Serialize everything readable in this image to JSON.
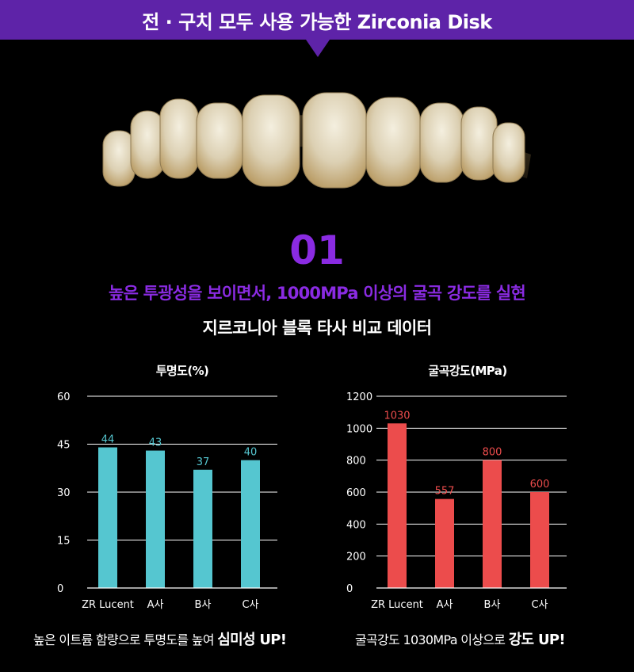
{
  "banner": {
    "text": "전 · 구치 모두 사용 가능한 Zirconia Disk"
  },
  "section": {
    "number": "01",
    "headline": "높은 투광성을 보이면서, 1000MPa 이상의 굴곡 강도를 실현",
    "subtitle": "지르코니아 블록 타사 비교 데이터"
  },
  "colors": {
    "accent": "#8a2be2",
    "banner": "#5e23a8",
    "translucency_bar": "#55c6d0",
    "strength_bar": "#ec4c4c"
  },
  "chart_data": [
    {
      "type": "bar",
      "title": "투명도(%)",
      "categories": [
        "ZR Lucent",
        "A사",
        "B사",
        "C사"
      ],
      "values": [
        44,
        43,
        37,
        40
      ],
      "yticks": [
        0,
        15,
        30,
        45,
        60
      ],
      "ylim": [
        0,
        60
      ],
      "grid": true
    },
    {
      "type": "bar",
      "title": "굴곡강도(MPa)",
      "categories": [
        "ZR Lucent",
        "A사",
        "B사",
        "C사"
      ],
      "values": [
        1030,
        557,
        800,
        600
      ],
      "yticks": [
        0,
        200,
        400,
        600,
        800,
        1000,
        1200
      ],
      "ylim": [
        0,
        1200
      ],
      "grid": true
    }
  ],
  "captions": {
    "left_prefix": "높은 이트륨 함량으로 투명도를 높여 ",
    "left_emphasis": "심미성 UP!",
    "right_prefix": "굴곡강도 1030MPa 이상으로 ",
    "right_emphasis": "강도 UP!"
  }
}
